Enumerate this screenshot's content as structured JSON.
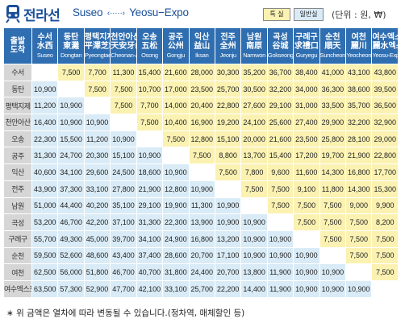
{
  "header": {
    "title": "전라선",
    "route_from": "Suseo",
    "route_arrow": "‹·····›",
    "route_to": "Yeosu−Expo",
    "legend_special": "특 실",
    "legend_normal": "일반실",
    "unit": "(단위 : 원, ₩)",
    "colors": {
      "special": "#fbf2b2",
      "normal": "#d9ebf6",
      "header": "#2f6eb0"
    }
  },
  "table": {
    "corner": [
      "출발",
      "도착"
    ],
    "columns": [
      {
        "l1": "수서",
        "l2": "水西",
        "l3": "Suseo"
      },
      {
        "l1": "동탄",
        "l2": "東灘",
        "l3": "Dongtan"
      },
      {
        "l1": "평택지제",
        "l2": "平澤芝制",
        "l3": "Pyeongtaek Jije"
      },
      {
        "l1": "천안아산",
        "l2": "天安牙山",
        "l3": "Cheonan-Asan"
      },
      {
        "l1": "오송",
        "l2": "五松",
        "l3": "Osong"
      },
      {
        "l1": "공주",
        "l2": "公州",
        "l3": "Gongju"
      },
      {
        "l1": "익산",
        "l2": "益山",
        "l3": "Iksan"
      },
      {
        "l1": "전주",
        "l2": "全州",
        "l3": "Jeonju"
      },
      {
        "l1": "남원",
        "l2": "南原",
        "l3": "Namwon"
      },
      {
        "l1": "곡성",
        "l2": "谷城",
        "l3": "Gokseong"
      },
      {
        "l1": "구례구",
        "l2": "求禮口",
        "l3": "Guryegu"
      },
      {
        "l1": "순천",
        "l2": "順天",
        "l3": "Suncheon"
      },
      {
        "l1": "여천",
        "l2": "麗川",
        "l3": "Yeocheon"
      },
      {
        "l1": "여수엑스포",
        "l2": "麗水엑스포",
        "l3": "Yeosu-Expo"
      }
    ],
    "rows": [
      {
        "label": "수서",
        "cells": [
          "",
          "7,500",
          "7,700",
          "11,300",
          "15,400",
          "21,600",
          "28,000",
          "30,300",
          "35,200",
          "36,700",
          "38,400",
          "41,000",
          "43,100",
          "43,800"
        ]
      },
      {
        "label": "동탄",
        "cells": [
          "10,900",
          "",
          "7,500",
          "7,500",
          "10,700",
          "17,000",
          "23,500",
          "25,700",
          "30,500",
          "32,200",
          "34,000",
          "36,300",
          "38,600",
          "39,500"
        ]
      },
      {
        "label": "평택지제",
        "cells": [
          "11,200",
          "10,900",
          "",
          "7,500",
          "7,700",
          "14,000",
          "20,400",
          "22,800",
          "27,600",
          "29,100",
          "31,000",
          "33,500",
          "35,700",
          "36,500"
        ]
      },
      {
        "label": "천안아산",
        "cells": [
          "16,400",
          "10,900",
          "10,900",
          "",
          "7,500",
          "10,400",
          "16,900",
          "19,200",
          "24,100",
          "25,600",
          "27,400",
          "29,900",
          "32,200",
          "32,900"
        ]
      },
      {
        "label": "오송",
        "cells": [
          "22,300",
          "15,500",
          "11,200",
          "10,900",
          "",
          "7,500",
          "12,800",
          "15,100",
          "20,000",
          "21,600",
          "23,500",
          "25,800",
          "28,100",
          "29,000"
        ]
      },
      {
        "label": "공주",
        "cells": [
          "31,300",
          "24,700",
          "20,300",
          "15,100",
          "10,900",
          "",
          "7,500",
          "8,800",
          "13,700",
          "15,400",
          "17,200",
          "19,700",
          "21,900",
          "22,800"
        ]
      },
      {
        "label": "익산",
        "cells": [
          "40,600",
          "34,100",
          "29,600",
          "24,500",
          "18,600",
          "10,900",
          "",
          "7,500",
          "7,800",
          "9,600",
          "11,600",
          "14,300",
          "16,800",
          "17,700"
        ]
      },
      {
        "label": "전주",
        "cells": [
          "43,900",
          "37,300",
          "33,100",
          "27,800",
          "21,900",
          "12,800",
          "10,900",
          "",
          "7,500",
          "7,500",
          "9,100",
          "11,800",
          "14,300",
          "15,300"
        ]
      },
      {
        "label": "남원",
        "cells": [
          "51,000",
          "44,400",
          "40,200",
          "35,100",
          "29,100",
          "19,900",
          "11,300",
          "10,900",
          "",
          "7,500",
          "7,500",
          "7,500",
          "9,000",
          "9,900"
        ]
      },
      {
        "label": "곡성",
        "cells": [
          "53,200",
          "46,700",
          "42,200",
          "37,100",
          "31,300",
          "22,300",
          "13,900",
          "10,900",
          "10,900",
          "",
          "7,500",
          "7,500",
          "7,500",
          "8,200"
        ]
      },
      {
        "label": "구례구",
        "cells": [
          "55,700",
          "49,300",
          "45,000",
          "39,700",
          "34,100",
          "24,900",
          "16,800",
          "13,200",
          "10,900",
          "10,900",
          "",
          "7,500",
          "7,500",
          "7,500"
        ]
      },
      {
        "label": "순천",
        "cells": [
          "59,500",
          "52,600",
          "48,600",
          "43,400",
          "37,400",
          "28,600",
          "20,700",
          "17,100",
          "10,900",
          "10,900",
          "10,900",
          "",
          "7,500",
          "7,500"
        ]
      },
      {
        "label": "여천",
        "cells": [
          "62,500",
          "56,000",
          "51,800",
          "46,700",
          "40,700",
          "31,800",
          "24,400",
          "20,700",
          "13,800",
          "11,900",
          "10,900",
          "10,900",
          "",
          "7,500"
        ]
      },
      {
        "label": "여수엑스포",
        "cells": [
          "63,500",
          "57,300",
          "52,900",
          "47,700",
          "42,100",
          "33,100",
          "25,700",
          "22,200",
          "14,400",
          "11,900",
          "10,900",
          "10,900",
          "10,900",
          ""
        ]
      }
    ]
  },
  "footnote": "∗ 위 금액은 열차에 따라 변동될 수 있습니다.(정차역, 매체할인 등)"
}
